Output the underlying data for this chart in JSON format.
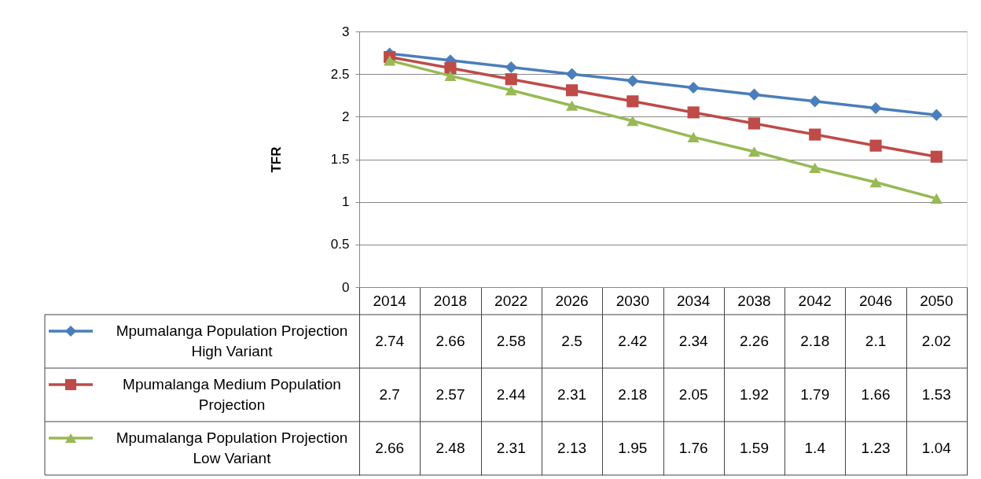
{
  "chart_data": {
    "type": "line",
    "ylabel": "TFR",
    "categories": [
      "2014",
      "2018",
      "2022",
      "2026",
      "2030",
      "2034",
      "2038",
      "2042",
      "2046",
      "2050"
    ],
    "series": [
      {
        "name": "Mpumalanga Population Projection High Variant",
        "color": "#4a7ebb",
        "marker": "diamond",
        "values": [
          2.74,
          2.66,
          2.58,
          2.5,
          2.42,
          2.34,
          2.26,
          2.18,
          2.1,
          2.02
        ]
      },
      {
        "name": "Mpumalanga Medium  Population Projection",
        "color": "#be4b48",
        "marker": "square",
        "values": [
          2.7,
          2.57,
          2.44,
          2.31,
          2.18,
          2.05,
          1.92,
          1.79,
          1.66,
          1.53
        ]
      },
      {
        "name": "Mpumalanga Population Projection Low Variant",
        "color": "#98b954",
        "marker": "triangle",
        "values": [
          2.66,
          2.48,
          2.31,
          2.13,
          1.95,
          1.76,
          1.59,
          1.4,
          1.23,
          1.04
        ]
      }
    ],
    "ylim": [
      0,
      3
    ],
    "yticks": [
      0,
      0.5,
      1,
      1.5,
      2,
      2.5,
      3
    ],
    "grid": "y",
    "legend": "bottom",
    "data_labels": true,
    "line_style": "solid"
  }
}
